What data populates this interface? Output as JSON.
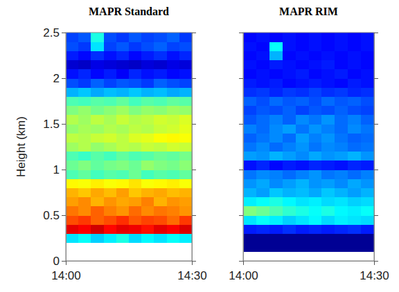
{
  "chart_data": [
    {
      "type": "heatmap",
      "title": "MAPR Standard",
      "ylabel": "Height (km)",
      "x": [
        0,
        3,
        6,
        9,
        12,
        15,
        18,
        21,
        24,
        27,
        30
      ],
      "y": [
        0.2,
        0.3,
        0.4,
        0.5,
        0.6,
        0.7,
        0.8,
        0.9,
        1.0,
        1.1,
        1.2,
        1.3,
        1.4,
        1.5,
        1.6,
        1.7,
        1.8,
        1.9,
        2.0,
        2.1,
        2.2,
        2.3,
        2.4,
        2.5
      ],
      "z": [
        [
          0.35,
          0.38,
          0.33,
          0.36,
          0.4,
          0.34,
          0.37,
          0.35,
          0.38,
          0.36
        ],
        [
          0.9,
          0.88,
          0.92,
          0.87,
          0.9,
          0.89,
          0.86,
          0.9,
          0.88,
          0.91
        ],
        [
          0.8,
          0.82,
          0.78,
          0.8,
          0.83,
          0.79,
          0.81,
          0.8,
          0.77,
          0.82
        ],
        [
          0.76,
          0.74,
          0.78,
          0.75,
          0.73,
          0.77,
          0.74,
          0.76,
          0.75,
          0.73
        ],
        [
          0.72,
          0.74,
          0.7,
          0.73,
          0.71,
          0.72,
          0.75,
          0.7,
          0.73,
          0.72
        ],
        [
          0.7,
          0.68,
          0.71,
          0.69,
          0.72,
          0.68,
          0.7,
          0.71,
          0.69,
          0.7
        ],
        [
          0.63,
          0.62,
          0.64,
          0.62,
          0.63,
          0.65,
          0.62,
          0.63,
          0.64,
          0.62
        ],
        [
          0.45,
          0.47,
          0.44,
          0.46,
          0.45,
          0.48,
          0.44,
          0.46,
          0.45,
          0.47
        ],
        [
          0.48,
          0.5,
          0.47,
          0.49,
          0.5,
          0.48,
          0.52,
          0.5,
          0.49,
          0.51
        ],
        [
          0.45,
          0.43,
          0.46,
          0.44,
          0.47,
          0.45,
          0.46,
          0.48,
          0.47,
          0.49
        ],
        [
          0.53,
          0.55,
          0.52,
          0.54,
          0.56,
          0.55,
          0.57,
          0.56,
          0.58,
          0.57
        ],
        [
          0.56,
          0.55,
          0.57,
          0.58,
          0.56,
          0.59,
          0.6,
          0.62,
          0.63,
          0.62
        ],
        [
          0.52,
          0.54,
          0.53,
          0.55,
          0.54,
          0.56,
          0.55,
          0.57,
          0.58,
          0.6
        ],
        [
          0.55,
          0.53,
          0.56,
          0.54,
          0.57,
          0.55,
          0.56,
          0.58,
          0.57,
          0.59
        ],
        [
          0.5,
          0.52,
          0.49,
          0.51,
          0.53,
          0.5,
          0.52,
          0.51,
          0.53,
          0.52
        ],
        [
          0.45,
          0.44,
          0.46,
          0.45,
          0.47,
          0.44,
          0.46,
          0.45,
          0.47,
          0.46
        ],
        [
          0.3,
          0.32,
          0.29,
          0.31,
          0.3,
          0.32,
          0.3,
          0.31,
          0.29,
          0.3
        ],
        [
          0.2,
          0.18,
          0.22,
          0.19,
          0.21,
          0.2,
          0.18,
          0.22,
          0.2,
          0.19
        ],
        [
          0.14,
          0.16,
          0.13,
          0.15,
          0.12,
          0.16,
          0.14,
          0.15,
          0.13,
          0.14
        ],
        [
          0.08,
          0.07,
          0.1,
          0.09,
          0.08,
          0.07,
          0.09,
          0.08,
          0.1,
          0.09
        ],
        [
          0.15,
          0.13,
          0.17,
          0.14,
          0.16,
          0.13,
          0.15,
          0.17,
          0.14,
          0.16
        ],
        [
          0.2,
          0.18,
          0.35,
          0.19,
          0.21,
          0.18,
          0.2,
          0.22,
          0.19,
          0.2
        ],
        [
          0.19,
          0.21,
          0.4,
          0.2,
          0.18,
          0.21,
          0.19,
          0.2,
          0.22,
          0.18
        ]
      ],
      "color_range": [
        0,
        1
      ],
      "xlim": [
        0,
        30
      ],
      "ylim": [
        0,
        2.5
      ],
      "xticks": [
        {
          "value": 0,
          "label": "14:00"
        },
        {
          "value": 30,
          "label": "14:30"
        }
      ],
      "yticks": [
        0,
        0.5,
        1,
        1.5,
        2,
        2.5
      ]
    },
    {
      "type": "heatmap",
      "title": "MAPR RIM",
      "x": [
        0,
        3,
        6,
        9,
        12,
        15,
        18,
        21,
        24,
        27,
        30
      ],
      "y": [
        0.1,
        0.2,
        0.3,
        0.4,
        0.5,
        0.6,
        0.7,
        0.8,
        0.9,
        1.0,
        1.1,
        1.2,
        1.3,
        1.4,
        1.5,
        1.6,
        1.7,
        1.8,
        1.9,
        2.0,
        2.1,
        2.2,
        2.3,
        2.4,
        2.5
      ],
      "z": [
        [
          0.02,
          0.02,
          0.02,
          0.02,
          0.02,
          0.02,
          0.02,
          0.02,
          0.02,
          0.02
        ],
        [
          0.02,
          0.02,
          0.02,
          0.02,
          0.02,
          0.02,
          0.02,
          0.02,
          0.02,
          0.02
        ],
        [
          0.15,
          0.16,
          0.15,
          0.17,
          0.15,
          0.16,
          0.15,
          0.16,
          0.17,
          0.15
        ],
        [
          0.35,
          0.38,
          0.36,
          0.33,
          0.35,
          0.37,
          0.34,
          0.36,
          0.35,
          0.34
        ],
        [
          0.5,
          0.48,
          0.45,
          0.42,
          0.4,
          0.38,
          0.4,
          0.37,
          0.36,
          0.38
        ],
        [
          0.36,
          0.38,
          0.4,
          0.37,
          0.35,
          0.36,
          0.34,
          0.35,
          0.33,
          0.34
        ],
        [
          0.3,
          0.28,
          0.32,
          0.3,
          0.31,
          0.29,
          0.32,
          0.3,
          0.28,
          0.3
        ],
        [
          0.27,
          0.29,
          0.26,
          0.28,
          0.3,
          0.27,
          0.28,
          0.26,
          0.29,
          0.27
        ],
        [
          0.24,
          0.26,
          0.25,
          0.23,
          0.25,
          0.27,
          0.24,
          0.25,
          0.23,
          0.25
        ],
        [
          0.14,
          0.16,
          0.13,
          0.15,
          0.14,
          0.16,
          0.15,
          0.14,
          0.16,
          0.15
        ],
        [
          0.28,
          0.27,
          0.3,
          0.28,
          0.26,
          0.29,
          0.27,
          0.28,
          0.3,
          0.27
        ],
        [
          0.24,
          0.26,
          0.23,
          0.25,
          0.27,
          0.24,
          0.26,
          0.25,
          0.23,
          0.24
        ],
        [
          0.22,
          0.24,
          0.26,
          0.23,
          0.28,
          0.25,
          0.27,
          0.24,
          0.22,
          0.23
        ],
        [
          0.25,
          0.23,
          0.26,
          0.28,
          0.24,
          0.27,
          0.25,
          0.23,
          0.26,
          0.24
        ],
        [
          0.21,
          0.23,
          0.25,
          0.22,
          0.26,
          0.24,
          0.27,
          0.23,
          0.25,
          0.22
        ],
        [
          0.19,
          0.21,
          0.2,
          0.22,
          0.19,
          0.21,
          0.2,
          0.22,
          0.2,
          0.19
        ],
        [
          0.22,
          0.2,
          0.23,
          0.21,
          0.22,
          0.2,
          0.23,
          0.21,
          0.22,
          0.2
        ],
        [
          0.17,
          0.18,
          0.16,
          0.18,
          0.17,
          0.19,
          0.17,
          0.18,
          0.16,
          0.17
        ],
        [
          0.15,
          0.14,
          0.15,
          0.13,
          0.14,
          0.15,
          0.14,
          0.13,
          0.15,
          0.14
        ],
        [
          0.13,
          0.14,
          0.13,
          0.14,
          0.15,
          0.13,
          0.14,
          0.15,
          0.13,
          0.14
        ],
        [
          0.14,
          0.13,
          0.15,
          0.14,
          0.13,
          0.14,
          0.15,
          0.13,
          0.14,
          0.13
        ],
        [
          0.13,
          0.14,
          0.3,
          0.13,
          0.14,
          0.13,
          0.14,
          0.13,
          0.14,
          0.13
        ],
        [
          0.14,
          0.13,
          0.38,
          0.14,
          0.13,
          0.14,
          0.13,
          0.14,
          0.13,
          0.14
        ],
        [
          0.13,
          0.14,
          0.13,
          0.14,
          0.13,
          0.14,
          0.13,
          0.14,
          0.13,
          0.14
        ]
      ],
      "color_range": [
        0,
        1
      ],
      "xlim": [
        0,
        30
      ],
      "ylim": [
        0,
        2.5
      ],
      "xticks": [
        {
          "value": 0,
          "label": "14:00"
        },
        {
          "value": 30,
          "label": "14:30"
        }
      ],
      "yticks": [
        0,
        0.5,
        1,
        1.5,
        2,
        2.5
      ],
      "tick_labels": "x"
    }
  ]
}
